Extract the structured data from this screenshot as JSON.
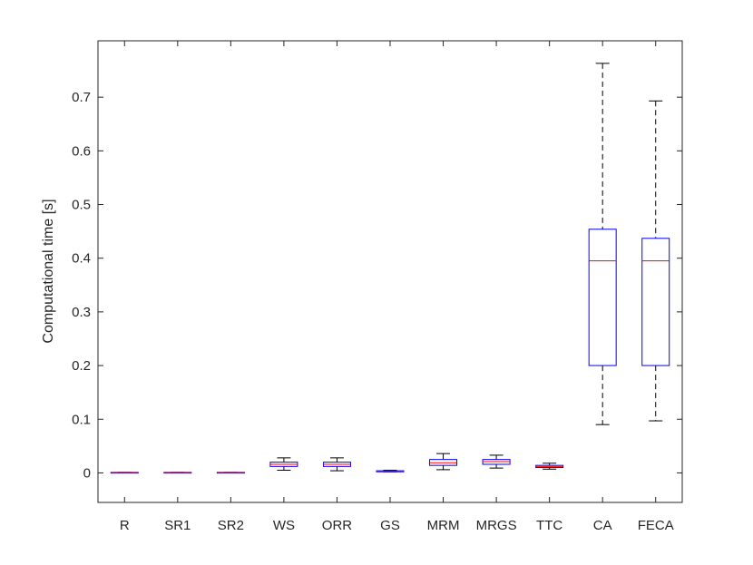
{
  "chart_data": {
    "type": "boxplot",
    "title": "",
    "xlabel": "",
    "ylabel": "Computational time [s]",
    "ylim": [
      -0.055,
      0.805
    ],
    "yticks": [
      0,
      0.1,
      0.2,
      0.3,
      0.4,
      0.5,
      0.6,
      0.7
    ],
    "ytick_labels": [
      "0",
      "0.1",
      "0.2",
      "0.3",
      "0.4",
      "0.5",
      "0.6",
      "0.7"
    ],
    "grid": false,
    "colors": {
      "box": "#0000ff",
      "median": "#ff0000",
      "whisker": "#000000",
      "axis": "#262626"
    },
    "categories": [
      "R",
      "SR1",
      "SR2",
      "WS",
      "ORR",
      "GS",
      "MRM",
      "MRGS",
      "TTC",
      "CA",
      "FECA"
    ],
    "boxes": [
      {
        "label": "R",
        "whisker_low": 0.0,
        "q1": 0.0,
        "median": 0.0005,
        "q3": 0.001,
        "whisker_high": 0.001
      },
      {
        "label": "SR1",
        "whisker_low": 0.0,
        "q1": 0.0,
        "median": 0.0005,
        "q3": 0.001,
        "whisker_high": 0.001
      },
      {
        "label": "SR2",
        "whisker_low": 0.0,
        "q1": 0.0,
        "median": 0.0005,
        "q3": 0.001,
        "whisker_high": 0.001
      },
      {
        "label": "WS",
        "whisker_low": 0.005,
        "q1": 0.012,
        "median": 0.016,
        "q3": 0.02,
        "whisker_high": 0.028
      },
      {
        "label": "ORR",
        "whisker_low": 0.004,
        "q1": 0.012,
        "median": 0.016,
        "q3": 0.02,
        "whisker_high": 0.028
      },
      {
        "label": "GS",
        "whisker_low": 0.002,
        "q1": 0.002,
        "median": 0.003,
        "q3": 0.004,
        "whisker_high": 0.005
      },
      {
        "label": "MRM",
        "whisker_low": 0.006,
        "q1": 0.014,
        "median": 0.019,
        "q3": 0.025,
        "whisker_high": 0.036
      },
      {
        "label": "MRGS",
        "whisker_low": 0.009,
        "q1": 0.016,
        "median": 0.021,
        "q3": 0.025,
        "whisker_high": 0.033
      },
      {
        "label": "TTC",
        "whisker_low": 0.007,
        "q1": 0.01,
        "median": 0.012,
        "q3": 0.014,
        "whisker_high": 0.018
      },
      {
        "label": "CA",
        "whisker_low": 0.09,
        "q1": 0.2,
        "median": 0.395,
        "q3": 0.454,
        "whisker_high": 0.763
      },
      {
        "label": "FECA",
        "whisker_low": 0.097,
        "q1": 0.2,
        "median": 0.395,
        "q3": 0.437,
        "whisker_high": 0.693
      }
    ]
  }
}
